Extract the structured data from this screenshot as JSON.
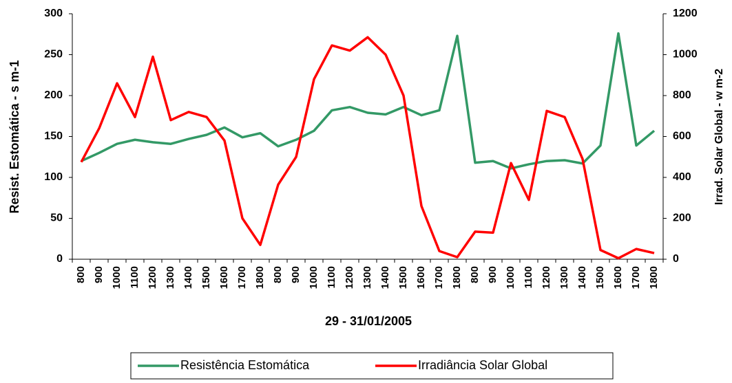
{
  "chart_data": {
    "type": "line",
    "x_label": "29 - 31/01/2005",
    "y_label": "Resist. Estomática - s m-1",
    "y2_label": "Irrad. Solar Global - w m-2",
    "categories": [
      "800",
      "900",
      "1000",
      "1100",
      "1200",
      "1300",
      "1400",
      "1500",
      "1600",
      "1700",
      "1800",
      "800",
      "900",
      "1000",
      "1100",
      "1200",
      "1300",
      "1400",
      "1500",
      "1600",
      "1700",
      "1800",
      "800",
      "900",
      "1000",
      "1100",
      "1200",
      "1300",
      "1400",
      "1500",
      "1600",
      "1700",
      "1800"
    ],
    "series": [
      {
        "name": "Resistência Estomática",
        "color": "#339966",
        "values": [
          120,
          130,
          141,
          146,
          143,
          141,
          147,
          152,
          161,
          149,
          154,
          138,
          146,
          157,
          182,
          186,
          179,
          177,
          186,
          176,
          182,
          273,
          118,
          120,
          111,
          116,
          120,
          121,
          117,
          139,
          276,
          139,
          157
        ]
      },
      {
        "name": "Irradiância Solar Global",
        "color": "#ff0000",
        "axis": "y2",
        "values": [
          475,
          640,
          860,
          695,
          990,
          680,
          720,
          695,
          580,
          200,
          70,
          365,
          500,
          880,
          1045,
          1020,
          1085,
          1000,
          800,
          260,
          40,
          10,
          135,
          130,
          470,
          290,
          725,
          695,
          490,
          45,
          5,
          50,
          30
        ]
      }
    ],
    "ylim": [
      0,
      300
    ],
    "yticks": [
      0,
      50,
      100,
      150,
      200,
      250,
      300
    ],
    "y2lim": [
      0,
      1200
    ],
    "y2ticks": [
      0,
      200,
      400,
      600,
      800,
      1000,
      1200
    ],
    "legend": "bottom"
  }
}
